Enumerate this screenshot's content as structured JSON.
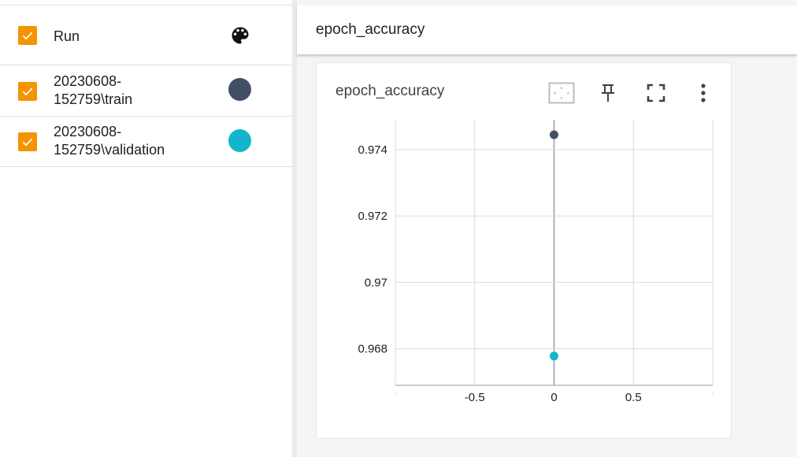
{
  "runs_panel": {
    "header_label": "Run",
    "runs": [
      {
        "label_line1": "20230608-",
        "label_line2": "152759\\train",
        "color": "#425066",
        "checked": true
      },
      {
        "label_line1": "20230608-",
        "label_line2": "152759\\validation",
        "color": "#12b5cb",
        "checked": true
      }
    ],
    "icons": {
      "palette": "palette-icon",
      "checkbox": "check-icon"
    },
    "checkbox_color": "#f59300"
  },
  "header": {
    "title": "epoch_accuracy"
  },
  "card": {
    "title": "epoch_accuracy",
    "toolbar": [
      "fit-domain-icon",
      "pin-icon",
      "fullscreen-icon",
      "more-vert-icon"
    ]
  },
  "chart_data": {
    "type": "scatter",
    "title": "epoch_accuracy",
    "xlabel": "",
    "ylabel": "",
    "xlim": [
      -1,
      1
    ],
    "ylim": [
      0.9669,
      0.9749
    ],
    "x_ticks": [
      -0.5,
      0,
      0.5
    ],
    "x_tick_labels": [
      "-0.5",
      "0",
      "0.5"
    ],
    "y_ticks": [
      0.968,
      0.97,
      0.972,
      0.974
    ],
    "y_tick_labels": [
      "0.968",
      "0.97",
      "0.972",
      "0.974"
    ],
    "grid": true,
    "series": [
      {
        "name": "20230608-152759\\train",
        "color": "#425066",
        "points": [
          [
            0,
            0.97445
          ]
        ]
      },
      {
        "name": "20230608-152759\\validation",
        "color": "#12b5cb",
        "points": [
          [
            0,
            0.96778
          ]
        ]
      }
    ]
  }
}
